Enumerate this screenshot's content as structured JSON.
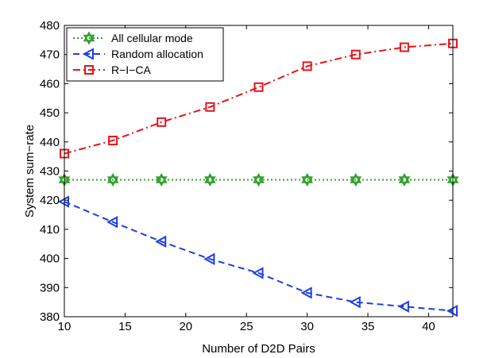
{
  "chart_data": {
    "type": "line",
    "title": "",
    "xlabel": "Number of D2D Pairs",
    "ylabel": "System sum−rate",
    "xlim": [
      10,
      42
    ],
    "ylim": [
      380,
      480
    ],
    "xticks": [
      10,
      15,
      20,
      25,
      30,
      35,
      40
    ],
    "yticks": [
      380,
      390,
      400,
      410,
      420,
      430,
      440,
      450,
      460,
      470,
      480
    ],
    "x": [
      10,
      14,
      18,
      22,
      26,
      30,
      34,
      38,
      42
    ],
    "legend_position": "top-left",
    "grid": false,
    "series": [
      {
        "name": "All cellular mode",
        "color": "#33a02c",
        "line_style": "dotted",
        "marker": "hexagram",
        "values": [
          427,
          427,
          427,
          427,
          427,
          427,
          427,
          427,
          427
        ]
      },
      {
        "name": "Random allocation",
        "color": "#1f3fe0",
        "line_style": "dashed",
        "marker": "left-triangle",
        "values": [
          419.5,
          412.5,
          405.8,
          399.8,
          395,
          388.2,
          385,
          383.5,
          382
        ]
      },
      {
        "name": "R−I−CA",
        "color": "#e8131a",
        "line_style": "dash-dot",
        "marker": "square",
        "values": [
          436,
          440.5,
          446.8,
          452,
          458.8,
          466,
          470,
          472.5,
          473.8
        ]
      }
    ]
  }
}
